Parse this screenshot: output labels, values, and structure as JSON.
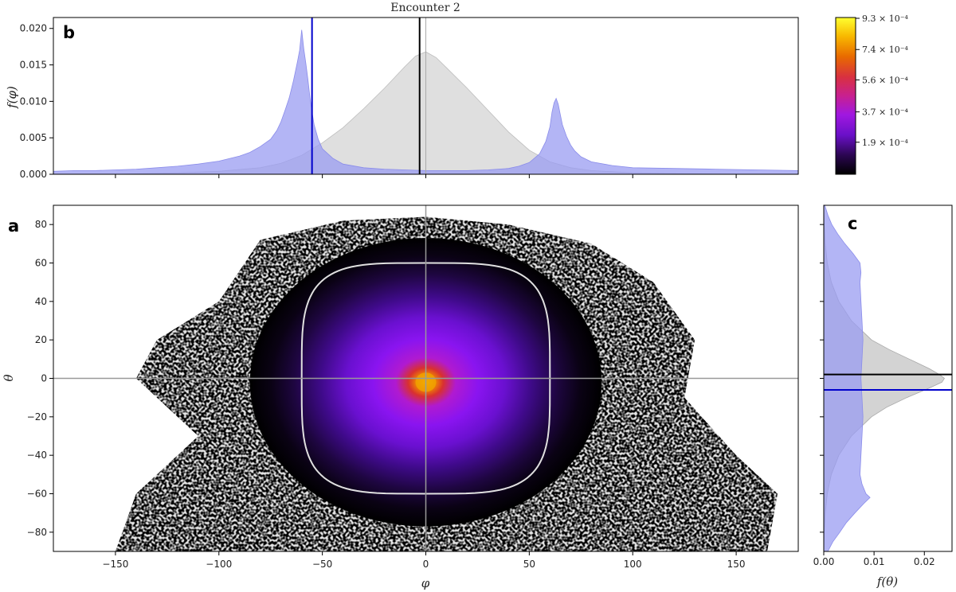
{
  "chart_data": [
    {
      "panel": "b",
      "type": "histogram",
      "title": "Encounter 2",
      "ylabel": "f(φ)",
      "xlim": [
        -180,
        180
      ],
      "ylim": [
        0,
        0.0215
      ],
      "yticks": [
        "0.000",
        "0.005",
        "0.010",
        "0.015",
        "0.020"
      ],
      "ytick_values": [
        0,
        0.005,
        0.01,
        0.015,
        0.02
      ],
      "xtick_values": [
        -150,
        -100,
        -50,
        0,
        50,
        100,
        150
      ],
      "series": [
        {
          "color": "#9a9cf2",
          "bins_x": [
            -180,
            -170,
            -160,
            -150,
            -140,
            -130,
            -120,
            -110,
            -100,
            -90,
            -85,
            -80,
            -75,
            -72,
            -70,
            -68,
            -66,
            -64,
            -62,
            -61,
            -60,
            -59,
            -58,
            -57,
            -56,
            -55,
            -54,
            -52,
            -50,
            -45,
            -40,
            -30,
            -20,
            -10,
            0,
            10,
            20,
            30,
            40,
            45,
            50,
            55,
            58,
            60,
            61,
            62,
            63,
            64,
            65,
            66,
            68,
            70,
            72,
            75,
            80,
            90,
            100,
            120,
            140,
            160,
            180
          ],
          "values": [
            0.0004,
            0.0005,
            0.0005,
            0.0006,
            0.0007,
            0.0009,
            0.0011,
            0.0014,
            0.0018,
            0.0025,
            0.003,
            0.0038,
            0.0048,
            0.006,
            0.0072,
            0.0088,
            0.0105,
            0.0128,
            0.0155,
            0.017,
            0.0198,
            0.0172,
            0.0152,
            0.013,
            0.0105,
            0.0085,
            0.0068,
            0.0048,
            0.0035,
            0.0022,
            0.0014,
            0.0009,
            0.0007,
            0.0006,
            0.0005,
            0.0005,
            0.0005,
            0.0006,
            0.0008,
            0.0011,
            0.0016,
            0.0028,
            0.0045,
            0.0065,
            0.0085,
            0.0098,
            0.0104,
            0.0096,
            0.0082,
            0.0068,
            0.0052,
            0.004,
            0.0032,
            0.0024,
            0.0017,
            0.0012,
            0.0009,
            0.0008,
            0.0007,
            0.0006,
            0.0005
          ]
        },
        {
          "color": "#d9d9d9",
          "bins_x": [
            -180,
            -150,
            -120,
            -100,
            -80,
            -70,
            -60,
            -50,
            -40,
            -30,
            -20,
            -10,
            -5,
            0,
            5,
            10,
            20,
            30,
            40,
            50,
            60,
            70,
            80,
            100,
            120,
            150,
            180
          ],
          "values": [
            0,
            0,
            0.0002,
            0.0004,
            0.0009,
            0.0015,
            0.0026,
            0.0043,
            0.0064,
            0.009,
            0.0118,
            0.0148,
            0.0162,
            0.0168,
            0.016,
            0.0146,
            0.0118,
            0.0088,
            0.0058,
            0.0033,
            0.0017,
            0.0009,
            0.0005,
            0.0002,
            0.0001,
            0,
            0
          ]
        }
      ],
      "vlines": [
        {
          "x": -55,
          "color": "#0000cc"
        },
        {
          "x": -3,
          "color": "#000000"
        },
        {
          "x": 0,
          "color": "#aaaaaa"
        }
      ]
    },
    {
      "panel": "a",
      "type": "heatmap",
      "xlabel": "φ",
      "ylabel": "θ",
      "xlim": [
        -180,
        180
      ],
      "ylim": [
        -90,
        90
      ],
      "xtick_values": [
        -150,
        -100,
        -50,
        0,
        50,
        100,
        150
      ],
      "ytick_values": [
        -80,
        -60,
        -40,
        -20,
        0,
        20,
        40,
        60,
        80
      ],
      "center": [
        0,
        -2
      ],
      "contour": {
        "color": "#e0e0e0",
        "phi_halfwidth": 60,
        "theta_halfwidth": 60
      },
      "hlines": [
        {
          "y": 0,
          "color": "#999999"
        }
      ],
      "vlines": [
        {
          "x": 0,
          "color": "#999999"
        }
      ]
    },
    {
      "panel": "c",
      "type": "histogram",
      "orientation": "horizontal",
      "xlabel": "f(θ)",
      "xlim": [
        0,
        0.0255
      ],
      "xticks": [
        "0.00",
        "0.01",
        "0.02"
      ],
      "xtick_values": [
        0,
        0.01,
        0.02
      ],
      "series": [
        {
          "color": "#9a9cf2",
          "bins_y": [
            -90,
            -85,
            -80,
            -75,
            -70,
            -65,
            -62,
            -60,
            -55,
            -50,
            -40,
            -30,
            -20,
            -10,
            0,
            10,
            20,
            30,
            40,
            50,
            55,
            60,
            65,
            70,
            75,
            80,
            85,
            90
          ],
          "values": [
            0.0008,
            0.0018,
            0.0032,
            0.0045,
            0.0062,
            0.008,
            0.0092,
            0.0084,
            0.0076,
            0.0072,
            0.0074,
            0.0076,
            0.0078,
            0.0076,
            0.0074,
            0.0076,
            0.0078,
            0.0076,
            0.0074,
            0.0072,
            0.0074,
            0.0072,
            0.0058,
            0.0042,
            0.0028,
            0.0016,
            0.0008,
            0.0002
          ]
        },
        {
          "color": "#c8c8c8",
          "bins_y": [
            -90,
            -80,
            -70,
            -60,
            -50,
            -40,
            -30,
            -20,
            -15,
            -10,
            -5,
            -2,
            0,
            2,
            5,
            10,
            15,
            20,
            30,
            40,
            50,
            60,
            70,
            80,
            90
          ],
          "values": [
            0,
            0.0001,
            0.0003,
            0.0007,
            0.0015,
            0.003,
            0.0055,
            0.0095,
            0.0125,
            0.0165,
            0.021,
            0.0235,
            0.024,
            0.023,
            0.021,
            0.017,
            0.013,
            0.0095,
            0.0055,
            0.003,
            0.0015,
            0.0007,
            0.0003,
            0.0001,
            0
          ]
        }
      ],
      "hlines": [
        {
          "y": 2,
          "color": "#000000"
        },
        {
          "y": -6,
          "color": "#0000cc"
        }
      ]
    },
    {
      "panel": "colorbar",
      "type": "colorbar",
      "colormap": [
        "#000000",
        "#3a0a6e",
        "#7a10d8",
        "#b21ad8",
        "#d8287a",
        "#e84a20",
        "#f08a00",
        "#ffd800",
        "#ffff40"
      ],
      "tick_labels": [
        "1.9 × 10⁻⁴",
        "3.7 × 10⁻⁴",
        "5.6 × 10⁻⁴",
        "7.4 × 10⁻⁴",
        "9.3 × 10⁻⁴"
      ],
      "tick_values": [
        0.00019,
        0.00037,
        0.00056,
        0.00074,
        0.00093
      ],
      "range": [
        0,
        0.00093
      ]
    }
  ],
  "labels": {
    "title": "Encounter 2",
    "panel_a": "a",
    "panel_b": "b",
    "panel_c": "c",
    "phi": "φ",
    "theta": "θ",
    "f_phi": "f(φ)",
    "f_theta": "f(θ)"
  }
}
